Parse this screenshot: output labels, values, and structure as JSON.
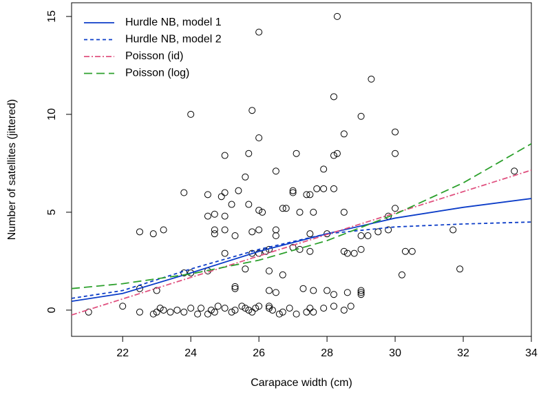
{
  "chart_data": {
    "type": "scatter",
    "x_label": "Carapace width (cm)",
    "y_label": "Number of satellites (jittered)",
    "xlim": [
      20.5,
      34
    ],
    "ylim": [
      -1.34,
      15.7
    ],
    "xticks": [
      22,
      24,
      26,
      28,
      30,
      32,
      34
    ],
    "yticks": [
      0,
      5,
      10,
      15
    ],
    "legend": "topleft",
    "points": {
      "color": "#000000",
      "x": [
        28.3,
        26,
        28.2,
        29.3,
        24,
        25.8,
        29,
        30,
        26,
        28.5,
        25,
        25.7,
        27.1,
        28.3,
        28.2,
        30,
        26.5,
        27.9,
        33.5,
        25.6,
        23.8,
        25.4,
        25,
        24.5,
        24.9,
        27,
        27,
        27.7,
        27.9,
        28.2,
        27.4,
        27.5,
        24.5,
        24.7,
        25,
        25.2,
        25.7,
        26,
        26.1,
        26.7,
        26.8,
        27.2,
        27.6,
        28.5,
        29.8,
        30,
        22.5,
        22.9,
        23.2,
        24.7,
        24.7,
        25,
        25.8,
        26,
        26.5,
        26.5,
        27.5,
        28,
        29,
        29.2,
        29.5,
        29.8,
        31.7,
        25.3,
        26,
        25.8,
        26.2,
        26.3,
        27,
        27.2,
        27.5,
        28.5,
        28.6,
        29,
        28.8,
        30.3,
        30.5,
        25,
        26.3,
        24,
        23.8,
        24.5,
        25.6,
        31.9,
        30.2,
        26.7,
        25.3,
        25.3,
        22.5,
        23,
        26.3,
        26.5,
        27.3,
        27.6,
        28,
        28.2,
        28.6,
        29,
        29,
        29,
        26.3,
        26.3,
        21,
        22,
        22.5,
        23,
        23.1,
        23.2,
        23.4,
        23.6,
        23.8,
        24,
        24.2,
        24.3,
        24.5,
        24.6,
        24.8,
        25,
        25.2,
        25.5,
        25.6,
        25.7,
        25.8,
        25.9,
        26,
        26.4,
        26.7,
        26.9,
        27.1,
        27.4,
        27.6,
        27.9,
        28.2,
        28.5,
        28.7,
        22.9,
        24.7,
        25.3,
        26.6,
        27.5
      ],
      "values": [
        15,
        14.2,
        10.9,
        11.8,
        10,
        10.2,
        9.9,
        9.1,
        8.8,
        9,
        7.9,
        8,
        8,
        8,
        7.9,
        8,
        7.1,
        7.2,
        7.1,
        6.8,
        6,
        6.1,
        6,
        5.9,
        5.8,
        6.1,
        6,
        6.2,
        6.2,
        6.2,
        5.9,
        5.9,
        4.8,
        4.9,
        4.8,
        5.4,
        5.4,
        5.1,
        5,
        5.2,
        5.2,
        5,
        5,
        5,
        4.8,
        5.2,
        4,
        3.9,
        4.1,
        4.1,
        3.9,
        4.1,
        4,
        4.1,
        4.1,
        3.8,
        3.9,
        3.9,
        3.8,
        3.8,
        4,
        4.1,
        4.1,
        3.8,
        2.9,
        2.9,
        3,
        3.1,
        3.2,
        3.1,
        3,
        3,
        2.9,
        3.1,
        2.9,
        3,
        3,
        2.9,
        2,
        1.9,
        1.9,
        2,
        2.1,
        2.1,
        1.8,
        1.8,
        1.2,
        1.1,
        1.1,
        1,
        1,
        0.9,
        1.1,
        1,
        1,
        0.8,
        0.9,
        1,
        0.9,
        0.8,
        0.2,
        0.1,
        -0.1,
        0.2,
        -0.1,
        -0.1,
        0.1,
        0,
        -0.1,
        0,
        -0.1,
        0.1,
        -0.2,
        0.1,
        -0.2,
        0,
        0.2,
        0.1,
        -0.1,
        0.2,
        0.1,
        0,
        -0.1,
        0.1,
        0.2,
        0,
        -0.1,
        0.1,
        -0.2,
        -0.1,
        -0.1,
        0.1,
        0.2,
        0,
        0.2,
        -0.2,
        -0.1,
        0,
        -0.2,
        0.1
      ]
    },
    "series": [
      {
        "name": "Hurdle NB, model 1",
        "color": "#0b3cc8",
        "dash": "",
        "x": [
          20.5,
          22,
          24,
          26,
          28,
          30,
          32,
          34
        ],
        "values": [
          0.45,
          0.85,
          1.9,
          3.0,
          3.9,
          4.7,
          5.25,
          5.7
        ]
      },
      {
        "name": "Hurdle NB, model 2",
        "color": "#0b3cc8",
        "dash": "5,4",
        "x": [
          20.5,
          22,
          24,
          26,
          28,
          30,
          32,
          34
        ],
        "values": [
          0.6,
          1.0,
          2.1,
          3.1,
          3.9,
          4.25,
          4.4,
          4.5
        ]
      },
      {
        "name": "Poisson (id)",
        "color": "#e0507f",
        "dash": "8,3,2,3",
        "x": [
          20.5,
          34
        ],
        "values": [
          -0.25,
          7.15
        ]
      },
      {
        "name": "Poisson (log)",
        "color": "#2ca02c",
        "dash": "12,6",
        "x": [
          20.5,
          22,
          24,
          26,
          28,
          30,
          32,
          34
        ],
        "values": [
          1.1,
          1.35,
          1.85,
          2.55,
          3.55,
          4.9,
          6.5,
          8.5
        ]
      }
    ]
  }
}
